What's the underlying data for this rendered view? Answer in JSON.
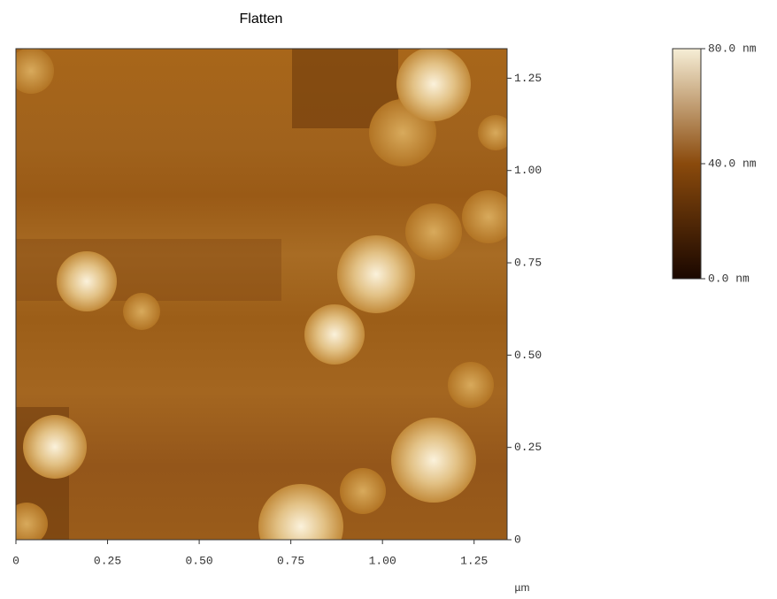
{
  "chart_data": {
    "type": "image",
    "title": "Flatten",
    "x_label": "µm",
    "xlim": [
      0,
      1.34
    ],
    "xticks": [
      0,
      0.25,
      {
        "value": 0.5,
        "label": "0.50"
      },
      0.75,
      {
        "value": 1,
        "label": "1.00"
      },
      1.25
    ],
    "ylim": [
      0,
      1.33
    ],
    "yticks": [
      0,
      0.25,
      {
        "value": 0.5,
        "label": "0.50"
      },
      0.75,
      {
        "value": 1,
        "label": "1.00"
      },
      1.25
    ],
    "colorbar": {
      "clim": [
        0,
        80
      ],
      "ticks": [
        {
          "value": 0,
          "label": "0.0 nm"
        },
        {
          "value": 40,
          "label": "40.0 nm"
        },
        {
          "value": 80,
          "label": "80.0 nm"
        }
      ],
      "colors": [
        "#1a0700",
        "#8a4a0c",
        "#f6eed6"
      ]
    }
  }
}
